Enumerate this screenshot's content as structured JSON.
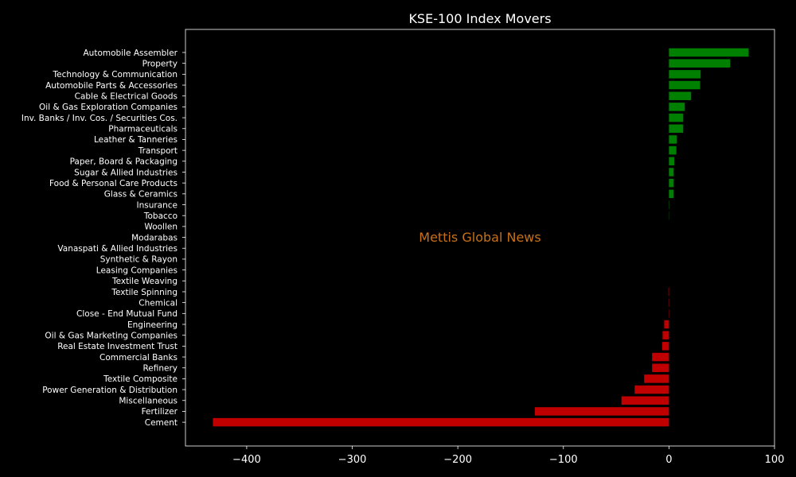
{
  "chart_data": {
    "type": "bar",
    "orientation": "horizontal",
    "title": "KSE-100 Index Movers",
    "xlabel": "",
    "ylabel": "",
    "xlim": [
      -458,
      100
    ],
    "xticks": [
      -400,
      -300,
      -200,
      -100,
      0,
      100
    ],
    "xtick_labels": [
      "−400",
      "−300",
      "−200",
      "−100",
      "0",
      "100"
    ],
    "grid": false,
    "colors": {
      "positive": "#008000",
      "negative": "#c00000",
      "background": "#000000",
      "text": "#ffffff"
    },
    "watermark": "Mettis Global News",
    "categories": [
      "Automobile Assembler",
      "Property",
      "Technology & Communication",
      "Automobile Parts & Accessories",
      "Cable & Electrical Goods",
      "Oil & Gas Exploration Companies",
      "Inv. Banks / Inv. Cos. / Securities Cos.",
      "Pharmaceuticals",
      "Leather & Tanneries",
      "Transport",
      "Paper, Board & Packaging",
      "Sugar & Allied Industries",
      "Food & Personal Care Products",
      "Glass & Ceramics",
      "Insurance",
      "Tobacco",
      "Woollen",
      "Modarabas",
      "Vanaspati & Allied Industries",
      "Synthetic & Rayon",
      "Leasing Companies",
      "Textile Weaving",
      "Textile Spinning",
      "Chemical",
      "Close - End Mutual Fund",
      "Engineering",
      "Oil & Gas Marketing Companies",
      "Real Estate Investment Trust",
      "Commercial Banks",
      "Refinery",
      "Textile Composite",
      "Power Generation & Distribution",
      "Miscellaneous",
      "Fertilizer",
      "Cement"
    ],
    "values": [
      75.5,
      58,
      30,
      29.5,
      21,
      15,
      13.5,
      13.5,
      7.5,
      7,
      5,
      4.5,
      4.5,
      4.5,
      0.3,
      0.2,
      0,
      0,
      0,
      0,
      0,
      0,
      -0.5,
      -0.4,
      -0.3,
      -4.5,
      -6,
      -6.5,
      -16,
      -16,
      -23.5,
      -32.5,
      -45,
      -127,
      -432
    ]
  }
}
